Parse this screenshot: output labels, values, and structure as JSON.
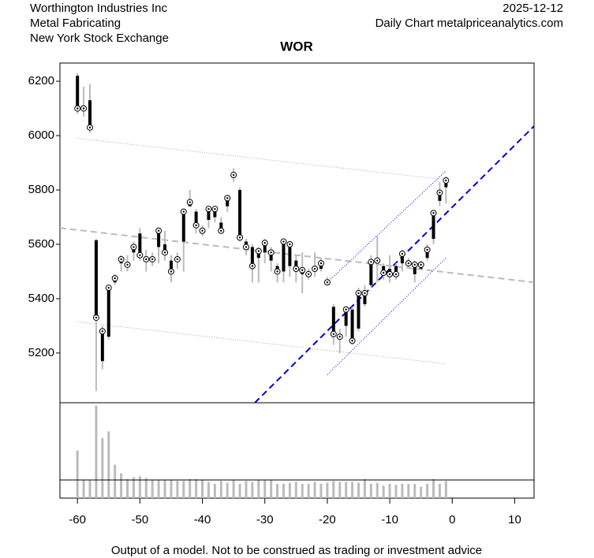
{
  "header": {
    "left": [
      "Worthington Industries Inc",
      "Metal Fabricating",
      "New York Stock Exchange"
    ],
    "right": [
      "2025-12-12",
      "Daily Chart metalpriceanalytics.com"
    ]
  },
  "footer": "Output of a model. Not to be construed as trading or investment advice",
  "chart_data": [
    {
      "type": "candlestick",
      "title": "WOR",
      "x": [
        -60,
        -59,
        -58,
        -57,
        -56,
        -55,
        -54,
        -53,
        -52,
        -51,
        -50,
        -49,
        -48,
        -47,
        -46,
        -45,
        -44,
        -43,
        -42,
        -41,
        -40,
        -39,
        -38,
        -37,
        -36,
        -35,
        -34,
        -33,
        -32,
        -31,
        -30,
        -29,
        -28,
        -27,
        -26,
        -25,
        -24,
        -23,
        -22,
        -21,
        -20,
        -19,
        -18,
        -17,
        -16,
        -15,
        -14,
        -13,
        -12,
        -11,
        -10,
        -9,
        -8,
        -7,
        -6,
        -5,
        -4,
        -3,
        -2,
        -1
      ],
      "open": [
        6220,
        6110,
        6130,
        5615,
        5170,
        5260,
        5460,
        5530,
        5520,
        5570,
        5640,
        5555,
        5540,
        5590,
        5600,
        5540,
        5540,
        5610,
        5740,
        5720,
        5640,
        5690,
        5700,
        5680,
        5740,
        5850,
        5800,
        5610,
        5590,
        5550,
        5570,
        5540,
        5520,
        5500,
        5520,
        5540,
        5490,
        5500,
        5500,
        5510,
        5470,
        5370,
        5250,
        5300,
        5360,
        5290,
        5380,
        5450,
        5530,
        5520,
        5510,
        5520,
        5530,
        5520,
        5490,
        5510,
        5550,
        5620,
        5760,
        5810
      ],
      "high": [
        6230,
        6180,
        6190,
        5620,
        5300,
        5450,
        5490,
        5560,
        5560,
        5610,
        5660,
        5580,
        5570,
        5660,
        5650,
        5560,
        5570,
        5730,
        5800,
        5730,
        5670,
        5740,
        5740,
        5700,
        5780,
        5880,
        5810,
        5620,
        5600,
        5590,
        5620,
        5590,
        5530,
        5620,
        5610,
        5560,
        5570,
        5510,
        5570,
        5550,
        5480,
        5380,
        5290,
        5370,
        5370,
        5440,
        5450,
        5560,
        5630,
        5530,
        5560,
        5530,
        5580,
        5550,
        5540,
        5540,
        5600,
        5720,
        5830,
        5850
      ],
      "low": [
        6080,
        6070,
        6010,
        5060,
        5140,
        5250,
        5450,
        5500,
        5500,
        5540,
        5540,
        5500,
        5520,
        5530,
        5540,
        5460,
        5510,
        5500,
        5740,
        5640,
        5630,
        5660,
        5680,
        5640,
        5720,
        5830,
        5610,
        5560,
        5460,
        5460,
        5530,
        5500,
        5460,
        5460,
        5480,
        5460,
        5420,
        5470,
        5480,
        5500,
        5450,
        5230,
        5200,
        5260,
        5230,
        5280,
        5370,
        5440,
        5460,
        5470,
        5460,
        5470,
        5500,
        5510,
        5460,
        5510,
        5540,
        5600,
        5740,
        5750
      ],
      "close": [
        6100,
        6100,
        6030,
        5330,
        5280,
        5440,
        5475,
        5545,
        5525,
        5590,
        5560,
        5545,
        5545,
        5650,
        5570,
        5500,
        5545,
        5720,
        5755,
        5670,
        5650,
        5730,
        5730,
        5650,
        5770,
        5855,
        5625,
        5590,
        5520,
        5575,
        5605,
        5570,
        5500,
        5610,
        5600,
        5510,
        5505,
        5490,
        5510,
        5530,
        5460,
        5270,
        5260,
        5360,
        5245,
        5420,
        5420,
        5535,
        5540,
        5495,
        5490,
        5490,
        5565,
        5530,
        5525,
        5525,
        5580,
        5715,
        5790,
        5835
      ],
      "lines": [
        {
          "x": [
            -60,
            -2
          ],
          "values": [
            5990,
            5840
          ],
          "color": "#aaaaaa",
          "style": "dotted"
        },
        {
          "x": [
            -60,
            -1
          ],
          "values": [
            5315,
            5160
          ],
          "color": "#aaaaaa",
          "style": "dotted"
        },
        {
          "x": [
            -62.8,
            13.1
          ],
          "values": [
            5660,
            5460
          ],
          "color": "#bbbbbb",
          "style": "dashed"
        },
        {
          "x": [
            -31.6,
            13.1
          ],
          "values": [
            5017,
            6035
          ],
          "color": "#0000cc",
          "style": "dashed"
        },
        {
          "x": [
            -20,
            -1
          ],
          "values": [
            5460,
            5870
          ],
          "color": "#0000ee",
          "style": "dotted"
        },
        {
          "x": [
            -20,
            -1
          ],
          "values": [
            5120,
            5550
          ],
          "color": "#0000ee",
          "style": "dotted"
        }
      ],
      "xlim": [
        -62.8,
        13.1
      ],
      "ylim": [
        5017,
        6267
      ],
      "yticks": [
        5200,
        5400,
        5600,
        5800,
        6000,
        6200
      ]
    },
    {
      "type": "bar",
      "color": "#bbbbbb",
      "values": [
        50,
        19,
        19,
        97,
        63,
        70,
        35,
        26,
        20,
        22,
        23,
        21,
        19,
        19,
        19,
        19,
        18,
        18,
        20,
        20,
        19,
        17,
        15,
        18,
        16,
        19,
        15,
        18,
        17,
        19,
        19,
        19,
        15,
        15,
        16,
        17,
        15,
        15,
        17,
        15,
        16,
        18,
        17,
        17,
        17,
        16,
        20,
        15,
        16,
        13,
        15,
        14,
        15,
        15,
        15,
        12,
        15,
        20,
        15,
        18
      ],
      "reference": 19,
      "xlim": [
        -62.8,
        13.1
      ],
      "ylim": [
        0,
        100
      ],
      "xticks": [
        -60,
        -50,
        -40,
        -30,
        -20,
        -10,
        0,
        10
      ]
    }
  ]
}
